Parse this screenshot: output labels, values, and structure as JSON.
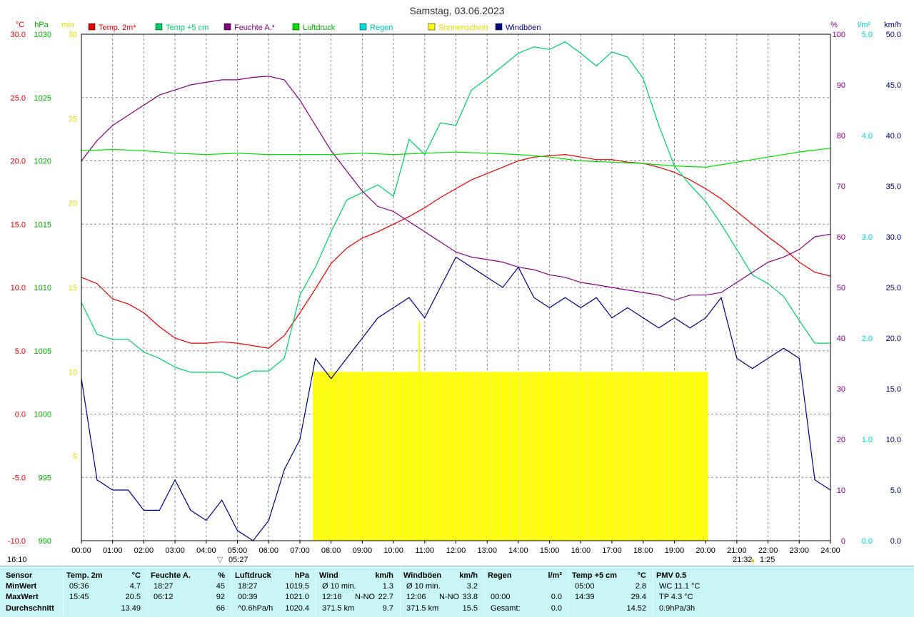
{
  "title": "Samstag, 03.06.2023",
  "legend": [
    {
      "label": "Temp. 2m*",
      "color": "#e00000"
    },
    {
      "label": "Temp +5 cm",
      "color": "#00cc66"
    },
    {
      "label": "Feuchte A.*",
      "color": "#800080"
    },
    {
      "label": "Luftdruck",
      "color": "#00dd00"
    },
    {
      "label": "Regen",
      "color": "#00dddd"
    },
    {
      "label": "Sonnenschein",
      "color": "#ffff00"
    },
    {
      "label": "Windböen",
      "color": "#000080"
    }
  ],
  "axis_units": {
    "temp": "°C",
    "pressure": "hPa",
    "sun": "min",
    "humidity": "%",
    "rain": "l/m²",
    "wind": "km/h"
  },
  "sun_markers": {
    "sunrise": "05:27",
    "sunset": "21:32",
    "moonset_left": "16:10",
    "moonrise_right": "1:25"
  },
  "chart_data": {
    "type": "line",
    "x_unit": "hours",
    "xlim": [
      0,
      24
    ],
    "x_ticks": [
      "00:00",
      "01:00",
      "02:00",
      "03:00",
      "04:00",
      "05:00",
      "06:00",
      "07:00",
      "08:00",
      "09:00",
      "10:00",
      "11:00",
      "12:00",
      "13:00",
      "14:00",
      "15:00",
      "16:00",
      "17:00",
      "18:00",
      "19:00",
      "20:00",
      "21:00",
      "22:00",
      "23:00",
      "24:00"
    ],
    "axes": {
      "temp": {
        "lim": [
          -10,
          30
        ],
        "ticks": [
          "-10.0",
          "-5.0",
          "0.0",
          "5.0",
          "10.0",
          "15.0",
          "20.0",
          "25.0",
          "30.0"
        ]
      },
      "pressure": {
        "lim": [
          990,
          1030
        ],
        "ticks": [
          "990",
          "995",
          "1000",
          "1005",
          "1010",
          "1015",
          "1020",
          "1025",
          "1030"
        ]
      },
      "sun": {
        "lim": [
          0,
          30
        ],
        "ticks": [
          "5",
          "10",
          "15",
          "20",
          "25",
          "30"
        ]
      },
      "humidity": {
        "lim": [
          0,
          100
        ],
        "ticks": [
          "0",
          "10",
          "20",
          "30",
          "40",
          "50",
          "60",
          "70",
          "80",
          "90",
          "100"
        ]
      },
      "rain": {
        "lim": [
          0,
          5
        ],
        "ticks": [
          "0.0",
          "1.0",
          "2.0",
          "3.0",
          "4.0",
          "5.0"
        ]
      },
      "wind": {
        "lim": [
          0,
          50
        ],
        "ticks": [
          "0.0",
          "5.0",
          "10.0",
          "15.0",
          "20.0",
          "25.0",
          "30.0",
          "35.0",
          "40.0",
          "45.0",
          "50.0"
        ]
      }
    },
    "series": [
      {
        "name": "Temp. 2m*",
        "axis": "temp",
        "color": "#e00000",
        "x": [
          0,
          0.5,
          1,
          1.5,
          2,
          2.5,
          3,
          3.5,
          4,
          4.5,
          5,
          5.5,
          6,
          6.5,
          7,
          7.5,
          8,
          8.5,
          9,
          9.5,
          10,
          10.5,
          11,
          11.5,
          12,
          12.5,
          13,
          13.5,
          14,
          14.5,
          15,
          15.5,
          16,
          16.5,
          17,
          17.5,
          18,
          18.5,
          19,
          19.5,
          20,
          20.5,
          21,
          21.5,
          22,
          22.5,
          23,
          23.5,
          24
        ],
        "y": [
          10.8,
          10.3,
          9.1,
          8.7,
          8.0,
          6.9,
          6.0,
          5.6,
          5.6,
          5.7,
          5.6,
          5.4,
          5.2,
          6.2,
          8.0,
          9.9,
          11.9,
          13.1,
          13.9,
          14.4,
          15.0,
          15.6,
          16.3,
          17.1,
          17.8,
          18.5,
          19.0,
          19.5,
          20.0,
          20.3,
          20.4,
          20.5,
          20.3,
          20.1,
          20.1,
          19.9,
          19.8,
          19.5,
          19.1,
          18.5,
          17.8,
          17.0,
          16.0,
          15.0,
          14.0,
          13.1,
          12.0,
          11.2,
          10.9
        ]
      },
      {
        "name": "Temp +5 cm",
        "axis": "temp",
        "color": "#00cc66",
        "x": [
          0,
          0.5,
          1,
          1.5,
          2,
          2.5,
          3,
          3.5,
          4,
          4.5,
          5,
          5.5,
          6,
          6.5,
          7,
          7.5,
          8,
          8.5,
          9,
          9.5,
          10,
          10.5,
          11,
          11.5,
          12,
          12.5,
          13,
          13.5,
          14,
          14.5,
          15,
          15.5,
          16,
          16.5,
          17,
          17.5,
          18,
          18.5,
          19,
          19.5,
          20,
          20.5,
          21,
          21.5,
          22,
          22.5,
          23,
          23.5,
          24
        ],
        "y": [
          8.8,
          6.3,
          5.9,
          5.9,
          4.9,
          4.4,
          3.7,
          3.3,
          3.3,
          3.3,
          2.8,
          3.4,
          3.4,
          4.4,
          9.4,
          11.6,
          14.4,
          16.9,
          17.5,
          18.1,
          17.2,
          21.7,
          20.5,
          23.0,
          22.8,
          25.6,
          26.5,
          27.5,
          28.5,
          29.0,
          28.8,
          29.4,
          28.5,
          27.5,
          28.6,
          28.2,
          26.5,
          22.8,
          19.6,
          18.1,
          16.8,
          15.0,
          13.0,
          11.0,
          10.3,
          9.3,
          7.4,
          5.6,
          5.6
        ]
      },
      {
        "name": "Feuchte A.*",
        "axis": "humidity",
        "color": "#800080",
        "x": [
          0,
          0.5,
          1,
          1.5,
          2,
          2.5,
          3,
          3.5,
          4,
          4.5,
          5,
          5.5,
          6,
          6.5,
          7,
          7.5,
          8,
          8.5,
          9,
          9.5,
          10,
          10.5,
          11,
          11.5,
          12,
          12.5,
          13,
          13.5,
          14,
          14.5,
          15,
          15.5,
          16,
          16.5,
          17,
          17.5,
          18,
          18.5,
          19,
          19.5,
          20,
          20.5,
          21,
          21.5,
          22,
          22.5,
          23,
          23.5,
          24
        ],
        "y": [
          75,
          79,
          82,
          84,
          86,
          88,
          89,
          90,
          90.5,
          91,
          91,
          91.5,
          91.7,
          91,
          87,
          82,
          77,
          73,
          69,
          66,
          65,
          63,
          61,
          59,
          57,
          56,
          55.5,
          55,
          54,
          53.5,
          52.5,
          52,
          51,
          50.5,
          50,
          49.5,
          49,
          48.5,
          47.5,
          48.5,
          48.5,
          49,
          51,
          53,
          55,
          56,
          57.5,
          60,
          60.5
        ]
      },
      {
        "name": "Luftdruck",
        "axis": "pressure",
        "color": "#00dd00",
        "x": [
          0,
          1,
          2,
          3,
          4,
          5,
          6,
          7,
          8,
          9,
          10,
          11,
          12,
          13,
          14,
          15,
          16,
          17,
          18,
          19,
          20,
          21,
          22,
          23,
          24
        ],
        "y": [
          1020.8,
          1020.9,
          1020.8,
          1020.6,
          1020.5,
          1020.6,
          1020.5,
          1020.5,
          1020.5,
          1020.6,
          1020.5,
          1020.6,
          1020.7,
          1020.6,
          1020.5,
          1020.3,
          1020.0,
          1019.9,
          1019.8,
          1019.6,
          1019.5,
          1019.9,
          1020.3,
          1020.7,
          1021.0
        ]
      },
      {
        "name": "Windböen",
        "axis": "wind",
        "color": "#000080",
        "x": [
          0,
          0.5,
          1,
          1.5,
          2,
          2.5,
          3,
          3.5,
          4,
          4.5,
          5,
          5.5,
          6,
          6.5,
          7,
          7.5,
          8,
          8.5,
          9,
          9.5,
          10,
          10.5,
          11,
          11.5,
          12,
          12.5,
          13,
          13.5,
          14,
          14.5,
          15,
          15.5,
          16,
          16.5,
          17,
          17.5,
          18,
          18.5,
          19,
          19.5,
          20,
          20.5,
          21,
          21.5,
          22,
          22.5,
          23,
          23.5,
          24
        ],
        "y": [
          16,
          6,
          5,
          5,
          3,
          3,
          6,
          3,
          2,
          4,
          1,
          0,
          2,
          7,
          10,
          18,
          16,
          18,
          20,
          22,
          23,
          24,
          22,
          25,
          28,
          27,
          26,
          25,
          27,
          24,
          23,
          24,
          23,
          24,
          22,
          23,
          22,
          21,
          22,
          21,
          22,
          24,
          18,
          17,
          18,
          19,
          18,
          6,
          5
        ]
      },
      {
        "name": "Sonnenschein",
        "axis": "sun",
        "color": "#ffff00",
        "kind": "bars",
        "x_start": 7.42,
        "x_end": 20.08,
        "y": 10,
        "peak_x": 10.83,
        "peak_y": 13
      }
    ]
  },
  "stats": {
    "row_labels": [
      "Sensor",
      "MinWert",
      "MaxWert",
      "Durchschnitt"
    ],
    "columns": [
      {
        "title": "Temp. 2m",
        "unit": "°C",
        "rows": [
          [
            "05:36",
            "",
            "4.7"
          ],
          [
            "15:45",
            "",
            "20.5"
          ],
          [
            "",
            "",
            "13.49"
          ]
        ]
      },
      {
        "title": "Feuchte A.",
        "unit": "%",
        "rows": [
          [
            "18:27",
            "",
            "45"
          ],
          [
            "06:12",
            "",
            "92"
          ],
          [
            "",
            "",
            "66"
          ]
        ]
      },
      {
        "title": "Luftdruck",
        "unit": "hPa",
        "rows": [
          [
            "18:27",
            "",
            "1019.5"
          ],
          [
            "00:39",
            "",
            "1021.0"
          ],
          [
            "^0.6hPa/h",
            "",
            "1020.4"
          ]
        ]
      },
      {
        "title": "Wind",
        "unit": "km/h",
        "rows": [
          [
            "Ø 10 min.",
            "",
            "1.3"
          ],
          [
            "12:18",
            "N-NO",
            "22.7"
          ],
          [
            "371.5 km",
            "",
            "9.7"
          ]
        ]
      },
      {
        "title": "Windböen",
        "unit": "km/h",
        "rows": [
          [
            "Ø 10 min.",
            "",
            "3.2"
          ],
          [
            "12:06",
            "N-NO",
            "33.8"
          ],
          [
            "371.5 km",
            "",
            "15.5"
          ]
        ]
      },
      {
        "title": "Regen",
        "unit": "l/m²",
        "rows": [
          [
            "",
            "",
            ""
          ],
          [
            "00:00",
            "",
            "0.0"
          ],
          [
            "Gesamt:",
            "",
            "0.0"
          ]
        ]
      },
      {
        "title": "Temp +5 cm",
        "unit": "°C",
        "rows": [
          [
            "05:00",
            "",
            "2.8"
          ],
          [
            "14:39",
            "",
            "29.4"
          ],
          [
            "",
            "",
            "14.52"
          ]
        ]
      },
      {
        "title": "PMV 0.5",
        "unit": "",
        "rows": [
          [
            "WC 11.1 °C",
            "",
            ""
          ],
          [
            "TP 4.3 °C",
            "",
            ""
          ],
          [
            "0.9hPa/3h",
            "",
            ""
          ]
        ]
      }
    ]
  }
}
